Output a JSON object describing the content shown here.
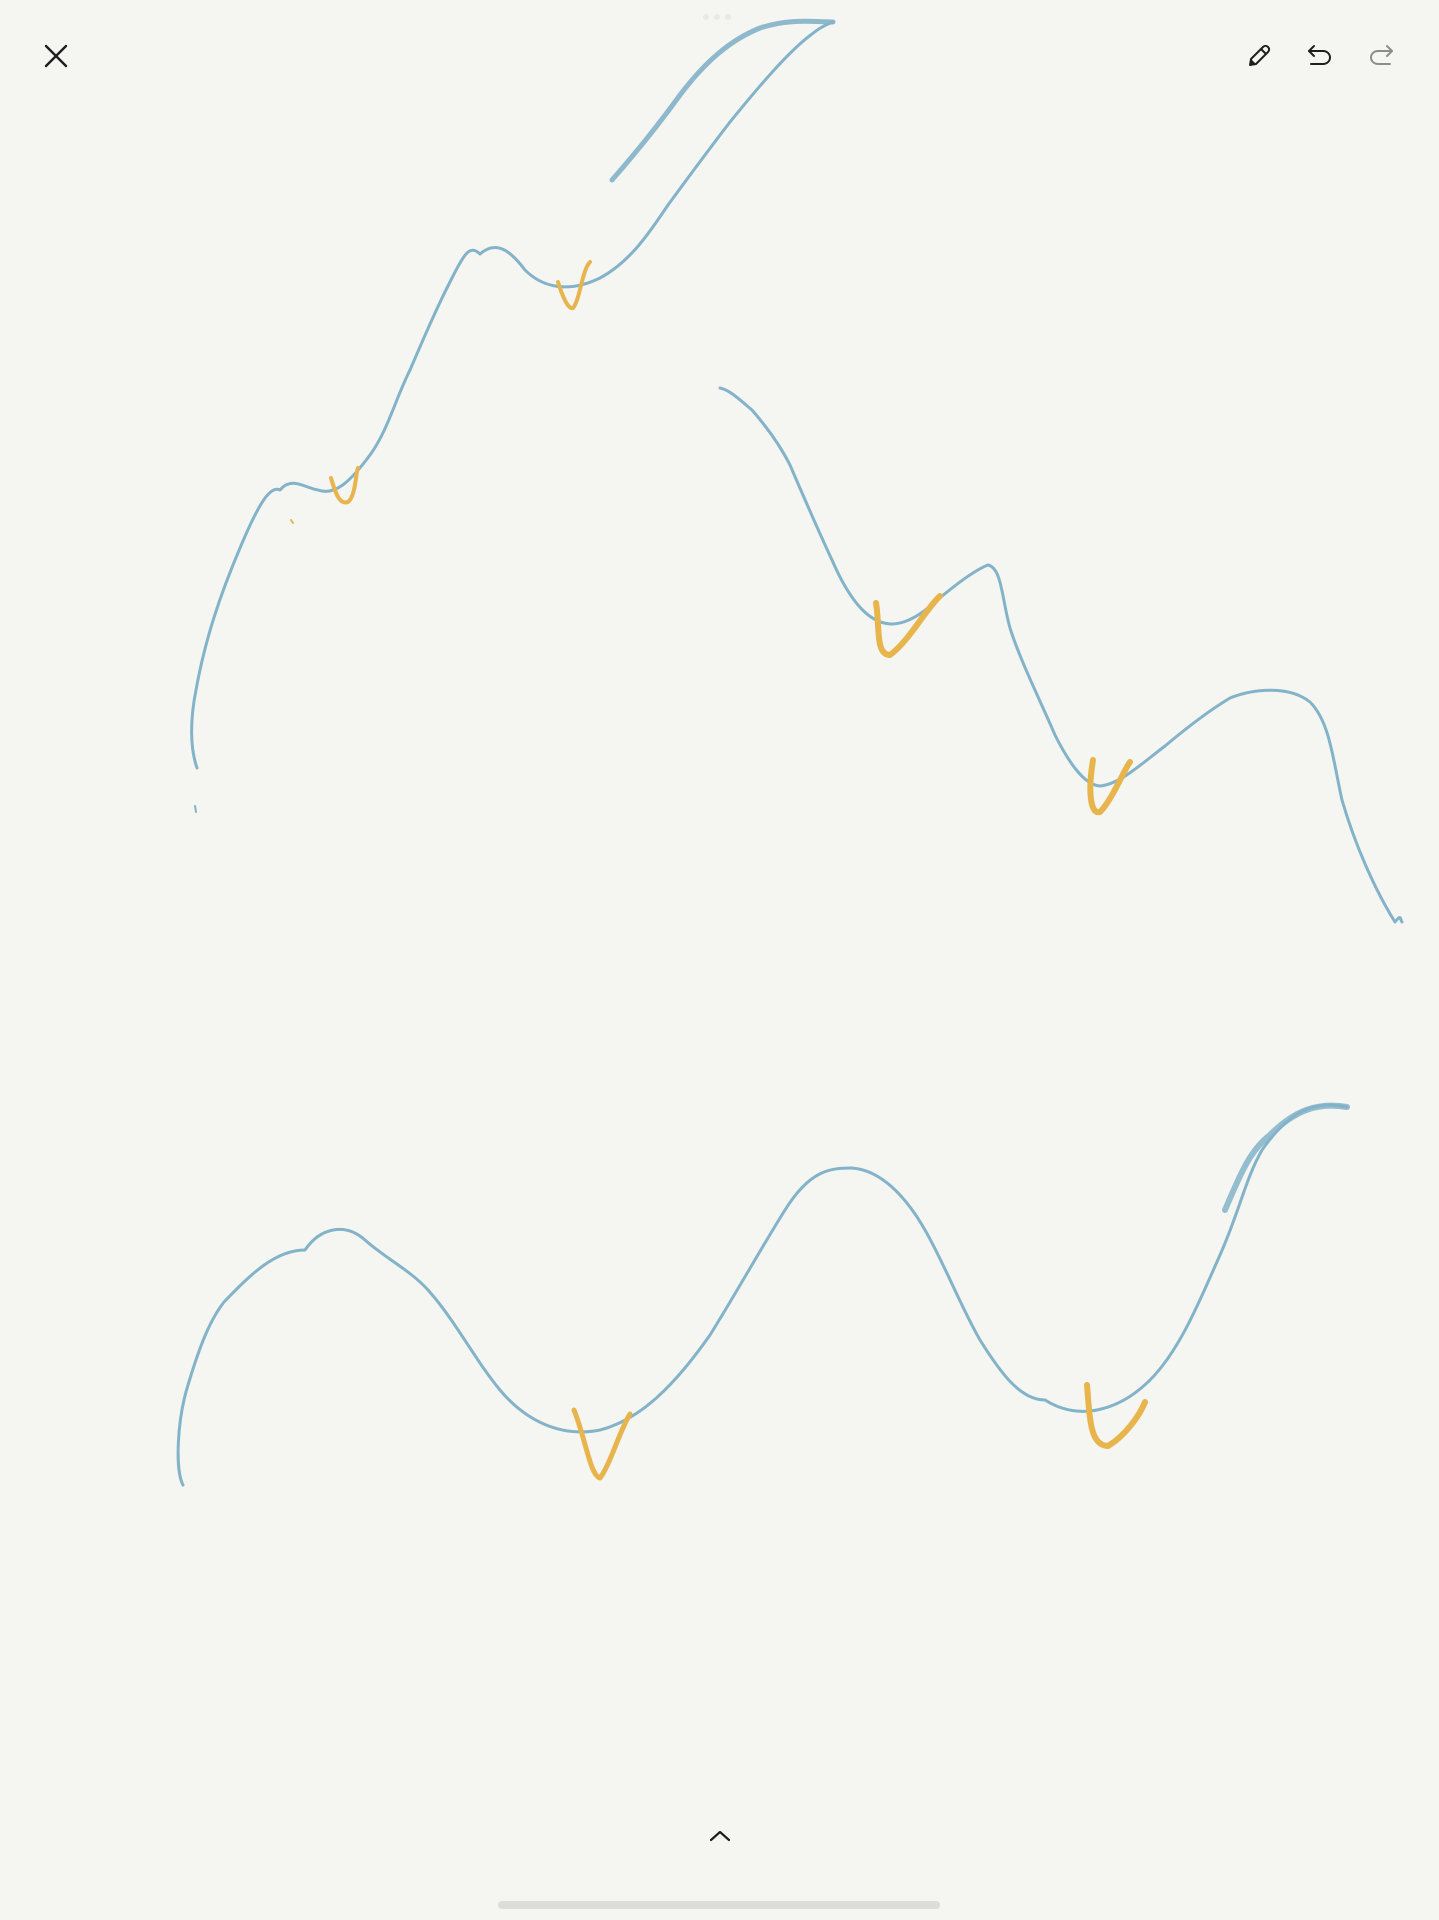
{
  "toolbar": {
    "close_icon": "close-icon",
    "pen_icon": "pencil-icon",
    "undo_icon": "undo-icon",
    "redo_icon": "redo-icon"
  },
  "bottom": {
    "expand_icon": "chevron-up-icon"
  },
  "colors": {
    "background": "#f5f5f1",
    "stroke_blue": "#83b3c9",
    "stroke_yellow": "#e8b44c",
    "icon_dark": "#1f1f1f",
    "icon_disabled": "#8d8d8a"
  }
}
